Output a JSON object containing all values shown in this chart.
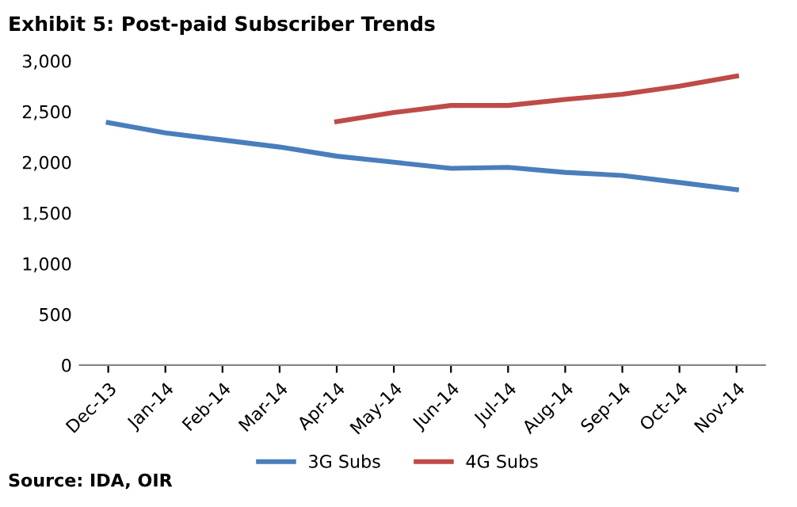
{
  "chart_data": {
    "type": "line",
    "title": "Exhibit 5: Post-paid Subscriber Trends",
    "categories": [
      "Dec-13",
      "Jan-14",
      "Feb-14",
      "Mar-14",
      "Apr-14",
      "May-14",
      "Jun-14",
      "Jul-14",
      "Aug-14",
      "Sep-14",
      "Oct-14",
      "Nov-14"
    ],
    "series": [
      {
        "name": "3G Subs",
        "color": "#4a7ebb",
        "values": [
          2390,
          2290,
          2220,
          2150,
          2060,
          2000,
          1940,
          1950,
          1900,
          1870,
          1800,
          1730
        ]
      },
      {
        "name": "4G Subs",
        "color": "#be4b48",
        "values": [
          null,
          null,
          null,
          null,
          2400,
          2490,
          2560,
          2560,
          2620,
          2670,
          2750,
          2850
        ]
      }
    ],
    "ylim": [
      0,
      3000
    ],
    "yticks": [
      {
        "value": 0,
        "label": "0"
      },
      {
        "value": 500,
        "label": "500"
      },
      {
        "value": 1000,
        "label": "1,000"
      },
      {
        "value": 1500,
        "label": "1,500"
      },
      {
        "value": 2000,
        "label": "2,000"
      },
      {
        "value": 2500,
        "label": "2,500"
      },
      {
        "value": 3000,
        "label": "3,000"
      }
    ],
    "grid": false,
    "legend": "bottom",
    "marker": "none",
    "line_style": "solid",
    "annotations": [
      "Source: IDA, OIR"
    ]
  }
}
